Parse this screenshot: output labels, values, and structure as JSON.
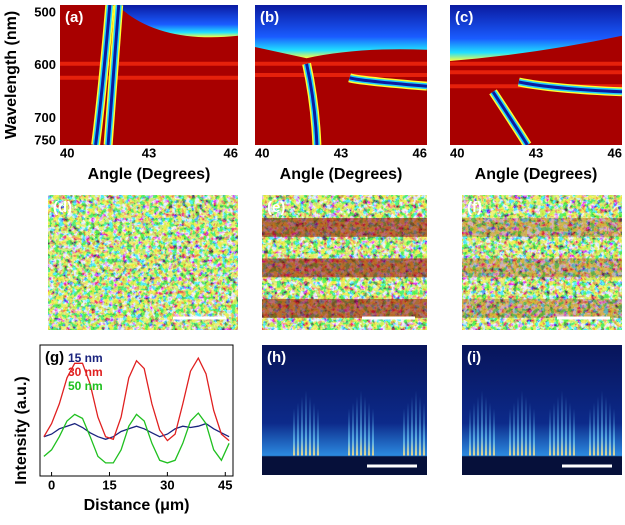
{
  "chart_data": [
    {
      "type": "heatmap",
      "label": "(a)",
      "xlabel": "Angle (Degrees)",
      "ylabel": "Wavelength (nm)",
      "xlim": [
        40,
        46
      ],
      "xticks": [
        40,
        43,
        46
      ],
      "ylim": [
        485,
        750
      ],
      "yticks": [
        500,
        600,
        700,
        750
      ],
      "y_reversed": true
    },
    {
      "type": "heatmap",
      "label": "(b)",
      "xlabel": "Angle (Degrees)",
      "xlim": [
        40,
        46
      ],
      "xticks": [
        40,
        43,
        46
      ]
    },
    {
      "type": "heatmap",
      "label": "(c)",
      "xlabel": "Angle (Degrees)",
      "xlim": [
        40,
        46
      ],
      "xticks": [
        40,
        43,
        46
      ]
    },
    {
      "type": "speckle",
      "label": "(d)"
    },
    {
      "type": "speckle",
      "label": "(e)"
    },
    {
      "type": "speckle",
      "label": "(f)"
    },
    {
      "type": "line",
      "label": "(g)",
      "xlabel": "Distance (μm)",
      "ylabel": "Intensity (a.u.)",
      "x": [
        -2,
        0,
        2,
        4,
        6,
        8,
        10,
        12,
        14,
        16,
        18,
        20,
        22,
        24,
        26,
        28,
        30,
        32,
        34,
        36,
        38,
        40,
        42,
        44,
        46
      ],
      "xlim": [
        -3,
        47
      ],
      "xticks": [
        0,
        15,
        30,
        45
      ],
      "ylim": [
        0,
        1
      ],
      "series": [
        {
          "name": "15 nm",
          "color": "#1a237e",
          "values": [
            0.3,
            0.32,
            0.36,
            0.38,
            0.4,
            0.37,
            0.33,
            0.3,
            0.28,
            0.3,
            0.34,
            0.36,
            0.38,
            0.36,
            0.33,
            0.3,
            0.32,
            0.36,
            0.38,
            0.37,
            0.38,
            0.4,
            0.36,
            0.33,
            0.3
          ]
        },
        {
          "name": "30 nm",
          "color": "#e02020",
          "values": [
            0.3,
            0.4,
            0.55,
            0.75,
            0.86,
            0.86,
            0.7,
            0.45,
            0.3,
            0.28,
            0.45,
            0.75,
            0.88,
            0.82,
            0.55,
            0.35,
            0.27,
            0.32,
            0.55,
            0.8,
            0.9,
            0.78,
            0.5,
            0.32,
            0.27
          ]
        },
        {
          "name": "50 nm",
          "color": "#20c020",
          "values": [
            0.15,
            0.2,
            0.3,
            0.42,
            0.47,
            0.44,
            0.3,
            0.15,
            0.1,
            0.1,
            0.2,
            0.38,
            0.47,
            0.42,
            0.25,
            0.12,
            0.1,
            0.12,
            0.25,
            0.42,
            0.48,
            0.4,
            0.2,
            0.12,
            0.25
          ]
        }
      ]
    },
    {
      "type": "field",
      "label": "(h)",
      "streaks": 3
    },
    {
      "type": "field",
      "label": "(i)",
      "streaks": 4
    }
  ]
}
